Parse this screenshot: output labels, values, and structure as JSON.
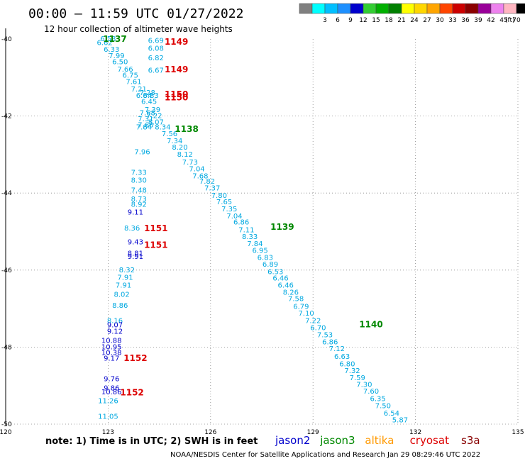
{
  "header": {
    "title": "00:00 – 11:59 UTC 01/27/2022",
    "subtitle": "12 hour collection of altimeter wave heights"
  },
  "colorbar": {
    "unit": "(ft)",
    "bins": [
      {
        "color": "#808080",
        "label": ""
      },
      {
        "color": "#00ffff",
        "label": "3"
      },
      {
        "color": "#00bfff",
        "label": "6"
      },
      {
        "color": "#1e90ff",
        "label": "9"
      },
      {
        "color": "#0000cd",
        "label": "12"
      },
      {
        "color": "#32cd32",
        "label": "15"
      },
      {
        "color": "#00b000",
        "label": "18"
      },
      {
        "color": "#008000",
        "label": "21"
      },
      {
        "color": "#ffff00",
        "label": "24"
      },
      {
        "color": "#ffd700",
        "label": "27"
      },
      {
        "color": "#ffa500",
        "label": "30"
      },
      {
        "color": "#ff4500",
        "label": "33"
      },
      {
        "color": "#cc0000",
        "label": "36"
      },
      {
        "color": "#8b0000",
        "label": "39"
      },
      {
        "color": "#990099",
        "label": "42"
      },
      {
        "color": "#ee82ee",
        "label": "45"
      },
      {
        "color": "#ffb6c1",
        "label": "70"
      },
      {
        "color": "#000000",
        "label": ""
      }
    ]
  },
  "note": "note:  1) Time is in UTC;  2) SWH is in feet",
  "satellites": [
    {
      "name": "jason2",
      "color": "#0000cc"
    },
    {
      "name": "jason3",
      "color": "#008800"
    },
    {
      "name": "altika",
      "color": "#ff9900"
    },
    {
      "name": "cryosat",
      "color": "#dd0000"
    },
    {
      "name": "s3a",
      "color": "#880000"
    }
  ],
  "credit": "NOAA/NESDIS Center for Satellite Applications and Research     Jan 29 08:29:46 UTC 2022",
  "chart_data": {
    "type": "scatter",
    "xlim": [
      120,
      135
    ],
    "ylim": [
      -50,
      -40
    ],
    "x_ticks": [
      "120",
      "123",
      "126",
      "129",
      "132",
      "135"
    ],
    "y_ticks": [
      "-40",
      "-42",
      "-44",
      "-46",
      "-48",
      "-50"
    ],
    "grid": true,
    "colors": {
      "cyan": "#00a8e0",
      "blue": "#0000cc",
      "green": "#008800",
      "red": "#dd0000"
    },
    "points": [
      {
        "lon": 123.0,
        "lat": -40.0,
        "v": "6.53",
        "c": "cyan"
      },
      {
        "lon": 122.9,
        "lat": -40.1,
        "v": "6.62",
        "c": "cyan"
      },
      {
        "lon": 123.1,
        "lat": -40.28,
        "v": "6.33",
        "c": "cyan"
      },
      {
        "lon": 123.25,
        "lat": -40.44,
        "v": "7.99",
        "c": "cyan"
      },
      {
        "lon": 123.35,
        "lat": -40.6,
        "v": "6.50",
        "c": "cyan"
      },
      {
        "lon": 123.5,
        "lat": -40.79,
        "v": "7.66",
        "c": "cyan"
      },
      {
        "lon": 123.65,
        "lat": -40.95,
        "v": "6.75",
        "c": "cyan"
      },
      {
        "lon": 123.75,
        "lat": -41.11,
        "v": "7.61",
        "c": "cyan"
      },
      {
        "lon": 123.9,
        "lat": -41.31,
        "v": "7.21",
        "c": "cyan"
      },
      {
        "lon": 124.05,
        "lat": -41.47,
        "v": "6.84",
        "c": "cyan"
      },
      {
        "lon": 124.15,
        "lat": -41.4,
        "v": "7.28",
        "c": "cyan"
      },
      {
        "lon": 124.25,
        "lat": -41.47,
        "v": "6.83",
        "c": "cyan"
      },
      {
        "lon": 124.2,
        "lat": -41.63,
        "v": "6.45",
        "c": "cyan"
      },
      {
        "lon": 124.3,
        "lat": -41.84,
        "v": "7.39",
        "c": "cyan"
      },
      {
        "lon": 124.15,
        "lat": -41.92,
        "v": "7.68",
        "c": "cyan"
      },
      {
        "lon": 124.35,
        "lat": -42.0,
        "v": "7.22",
        "c": "cyan"
      },
      {
        "lon": 124.1,
        "lat": -42.08,
        "v": "7.31",
        "c": "cyan"
      },
      {
        "lon": 124.4,
        "lat": -42.16,
        "v": "8.07",
        "c": "cyan"
      },
      {
        "lon": 124.1,
        "lat": -42.24,
        "v": "7.68",
        "c": "cyan"
      },
      {
        "lon": 124.05,
        "lat": -42.29,
        "v": "7.84",
        "c": "cyan"
      },
      {
        "lon": 124.6,
        "lat": -42.29,
        "v": "8.34",
        "c": "cyan"
      },
      {
        "lon": 124.8,
        "lat": -42.47,
        "v": "7.56",
        "c": "cyan"
      },
      {
        "lon": 124.95,
        "lat": -42.65,
        "v": "7.34",
        "c": "cyan"
      },
      {
        "lon": 125.1,
        "lat": -42.82,
        "v": "8.20",
        "c": "cyan"
      },
      {
        "lon": 125.25,
        "lat": -43.0,
        "v": "8.12",
        "c": "cyan"
      },
      {
        "lon": 125.4,
        "lat": -43.2,
        "v": "7.73",
        "c": "cyan"
      },
      {
        "lon": 125.6,
        "lat": -43.38,
        "v": "7.04",
        "c": "cyan"
      },
      {
        "lon": 125.7,
        "lat": -43.56,
        "v": "7.68",
        "c": "cyan"
      },
      {
        "lon": 125.9,
        "lat": -43.7,
        "v": "7.82",
        "c": "cyan"
      },
      {
        "lon": 126.05,
        "lat": -43.88,
        "v": "7.37",
        "c": "cyan"
      },
      {
        "lon": 126.25,
        "lat": -44.07,
        "v": "7.80",
        "c": "cyan"
      },
      {
        "lon": 126.4,
        "lat": -44.24,
        "v": "7.65",
        "c": "cyan"
      },
      {
        "lon": 126.55,
        "lat": -44.42,
        "v": "7.35",
        "c": "cyan"
      },
      {
        "lon": 126.7,
        "lat": -44.6,
        "v": "7.04",
        "c": "cyan"
      },
      {
        "lon": 126.9,
        "lat": -44.76,
        "v": "6.86",
        "c": "cyan"
      },
      {
        "lon": 127.05,
        "lat": -44.96,
        "v": "7.11",
        "c": "cyan"
      },
      {
        "lon": 127.15,
        "lat": -45.14,
        "v": "8.33",
        "c": "cyan"
      },
      {
        "lon": 127.3,
        "lat": -45.32,
        "v": "7.84",
        "c": "cyan"
      },
      {
        "lon": 127.45,
        "lat": -45.5,
        "v": "6.95",
        "c": "cyan"
      },
      {
        "lon": 127.6,
        "lat": -45.68,
        "v": "6.83",
        "c": "cyan"
      },
      {
        "lon": 127.75,
        "lat": -45.86,
        "v": "6.89",
        "c": "cyan"
      },
      {
        "lon": 127.9,
        "lat": -46.05,
        "v": "6.53",
        "c": "cyan"
      },
      {
        "lon": 128.05,
        "lat": -46.22,
        "v": "6.46",
        "c": "cyan"
      },
      {
        "lon": 128.2,
        "lat": -46.4,
        "v": "6.46",
        "c": "cyan"
      },
      {
        "lon": 128.35,
        "lat": -46.58,
        "v": "8.26",
        "c": "cyan"
      },
      {
        "lon": 128.5,
        "lat": -46.75,
        "v": "7.58",
        "c": "cyan"
      },
      {
        "lon": 128.65,
        "lat": -46.95,
        "v": "6.79",
        "c": "cyan"
      },
      {
        "lon": 128.8,
        "lat": -47.13,
        "v": "7.10",
        "c": "cyan"
      },
      {
        "lon": 129.0,
        "lat": -47.32,
        "v": "7.22",
        "c": "cyan"
      },
      {
        "lon": 129.15,
        "lat": -47.5,
        "v": "6.70",
        "c": "cyan"
      },
      {
        "lon": 129.35,
        "lat": -47.69,
        "v": "7.53",
        "c": "cyan"
      },
      {
        "lon": 129.5,
        "lat": -47.87,
        "v": "6.86",
        "c": "cyan"
      },
      {
        "lon": 129.7,
        "lat": -48.05,
        "v": "7.12",
        "c": "cyan"
      },
      {
        "lon": 129.85,
        "lat": -48.25,
        "v": "6.63",
        "c": "cyan"
      },
      {
        "lon": 130.0,
        "lat": -48.44,
        "v": "6.80",
        "c": "cyan"
      },
      {
        "lon": 130.15,
        "lat": -48.62,
        "v": "7.32",
        "c": "cyan"
      },
      {
        "lon": 130.3,
        "lat": -48.8,
        "v": "7.59",
        "c": "cyan"
      },
      {
        "lon": 130.5,
        "lat": -48.98,
        "v": "7.30",
        "c": "cyan"
      },
      {
        "lon": 130.7,
        "lat": -49.15,
        "v": "7.60",
        "c": "cyan"
      },
      {
        "lon": 130.9,
        "lat": -49.35,
        "v": "6.35",
        "c": "cyan"
      },
      {
        "lon": 131.05,
        "lat": -49.53,
        "v": "7.50",
        "c": "cyan"
      },
      {
        "lon": 131.3,
        "lat": -49.72,
        "v": "6.54",
        "c": "cyan"
      },
      {
        "lon": 131.55,
        "lat": -49.9,
        "v": "5.87",
        "c": "cyan"
      },
      {
        "lon": 124.4,
        "lat": -40.05,
        "v": "6.69",
        "c": "cyan"
      },
      {
        "lon": 124.4,
        "lat": -40.25,
        "v": "6.08",
        "c": "cyan"
      },
      {
        "lon": 124.4,
        "lat": -40.5,
        "v": "6.82",
        "c": "cyan"
      },
      {
        "lon": 124.4,
        "lat": -40.82,
        "v": "6.67",
        "c": "cyan"
      },
      {
        "lon": 124.0,
        "lat": -42.94,
        "v": "7.96",
        "c": "cyan"
      },
      {
        "lon": 123.9,
        "lat": -43.47,
        "v": "7.33",
        "c": "cyan"
      },
      {
        "lon": 123.9,
        "lat": -43.67,
        "v": "8.30",
        "c": "cyan"
      },
      {
        "lon": 123.9,
        "lat": -43.93,
        "v": "7.48",
        "c": "cyan"
      },
      {
        "lon": 123.9,
        "lat": -44.16,
        "v": "8.73",
        "c": "cyan"
      },
      {
        "lon": 123.9,
        "lat": -44.3,
        "v": "8.92",
        "c": "cyan"
      },
      {
        "lon": 123.7,
        "lat": -44.92,
        "v": "8.36",
        "c": "cyan"
      },
      {
        "lon": 123.55,
        "lat": -46.0,
        "v": "8.32",
        "c": "cyan"
      },
      {
        "lon": 123.5,
        "lat": -46.2,
        "v": "7.91",
        "c": "cyan"
      },
      {
        "lon": 123.45,
        "lat": -46.4,
        "v": "7.91",
        "c": "cyan"
      },
      {
        "lon": 123.4,
        "lat": -46.64,
        "v": "8.02",
        "c": "cyan"
      },
      {
        "lon": 123.35,
        "lat": -46.92,
        "v": "8.86",
        "c": "cyan"
      },
      {
        "lon": 123.2,
        "lat": -47.32,
        "v": "8.16",
        "c": "cyan"
      },
      {
        "lon": 123.0,
        "lat": -49.4,
        "v": "11.26",
        "c": "cyan"
      },
      {
        "lon": 123.0,
        "lat": -49.81,
        "v": "11.05",
        "c": "cyan"
      },
      {
        "lon": 123.8,
        "lat": -44.5,
        "v": "9.11",
        "c": "blue"
      },
      {
        "lon": 123.8,
        "lat": -45.28,
        "v": "9.43",
        "c": "blue"
      },
      {
        "lon": 123.8,
        "lat": -45.57,
        "v": "8.81",
        "c": "blue"
      },
      {
        "lon": 123.8,
        "lat": -45.65,
        "v": "9.91",
        "c": "blue"
      },
      {
        "lon": 123.2,
        "lat": -47.43,
        "v": "9.07",
        "c": "blue"
      },
      {
        "lon": 123.2,
        "lat": -47.6,
        "v": "9.12",
        "c": "blue"
      },
      {
        "lon": 123.1,
        "lat": -47.84,
        "v": "10.88",
        "c": "blue"
      },
      {
        "lon": 123.1,
        "lat": -48.0,
        "v": "10.95",
        "c": "blue"
      },
      {
        "lon": 123.1,
        "lat": -48.15,
        "v": "10.38",
        "c": "blue"
      },
      {
        "lon": 123.1,
        "lat": -48.3,
        "v": "9.17",
        "c": "blue"
      },
      {
        "lon": 123.1,
        "lat": -48.83,
        "v": "9.76",
        "c": "blue"
      },
      {
        "lon": 123.1,
        "lat": -49.07,
        "v": "9.86",
        "c": "blue"
      },
      {
        "lon": 123.1,
        "lat": -49.17,
        "v": "10.86",
        "c": "blue"
      }
    ],
    "pass_labels": [
      {
        "lon": 123.2,
        "lat": -40.0,
        "text": "1137",
        "c": "green"
      },
      {
        "lon": 125.0,
        "lat": -40.07,
        "text": "1149",
        "c": "red"
      },
      {
        "lon": 125.0,
        "lat": -40.79,
        "text": "1149",
        "c": "red"
      },
      {
        "lon": 125.0,
        "lat": -41.44,
        "text": "1150",
        "c": "red"
      },
      {
        "lon": 125.0,
        "lat": -41.52,
        "text": "1150",
        "c": "red"
      },
      {
        "lon": 125.3,
        "lat": -42.34,
        "text": "1138",
        "c": "green"
      },
      {
        "lon": 124.4,
        "lat": -44.92,
        "text": "1151",
        "c": "red"
      },
      {
        "lon": 124.4,
        "lat": -45.35,
        "text": "1151",
        "c": "red"
      },
      {
        "lon": 128.1,
        "lat": -44.88,
        "text": "1139",
        "c": "green"
      },
      {
        "lon": 130.7,
        "lat": -47.41,
        "text": "1140",
        "c": "green"
      },
      {
        "lon": 123.8,
        "lat": -48.29,
        "text": "1152",
        "c": "red"
      },
      {
        "lon": 123.7,
        "lat": -49.18,
        "text": "1152",
        "c": "red"
      }
    ]
  }
}
